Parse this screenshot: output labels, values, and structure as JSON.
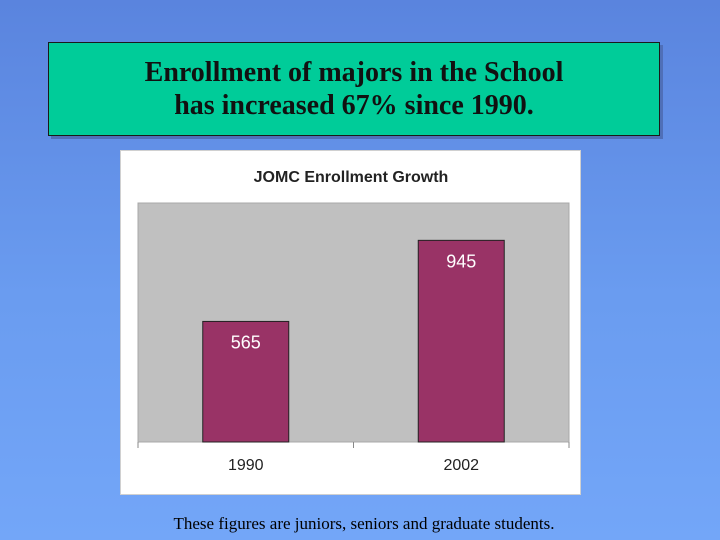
{
  "headline": {
    "line1": "Enrollment of majors in the School",
    "line2": "has increased 67% since 1990."
  },
  "caption": "These figures are juniors, seniors and graduate students.",
  "colors": {
    "bar": "#993366",
    "plot_area": "#c0c0c0",
    "title_box": "#00cc99"
  },
  "chart_data": {
    "type": "bar",
    "title": "JOMC Enrollment Growth",
    "categories": [
      "1990",
      "2002"
    ],
    "values": [
      565,
      945
    ],
    "data_labels": [
      "565",
      "945"
    ],
    "xlabel": "",
    "ylabel": "",
    "ylim": [
      0,
      1120
    ],
    "grid": false,
    "legend": "none"
  }
}
